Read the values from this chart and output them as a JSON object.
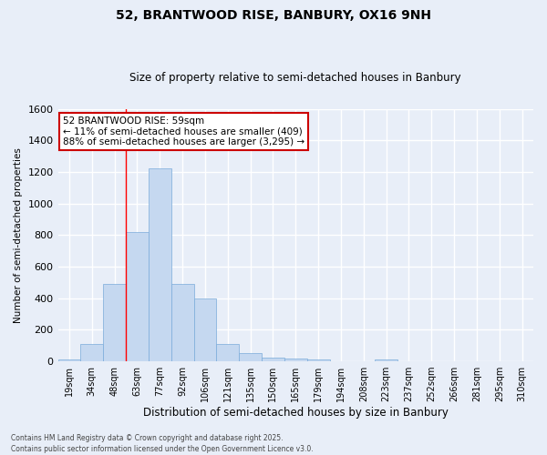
{
  "title1": "52, BRANTWOOD RISE, BANBURY, OX16 9NH",
  "title2": "Size of property relative to semi-detached houses in Banbury",
  "xlabel": "Distribution of semi-detached houses by size in Banbury",
  "ylabel": "Number of semi-detached properties",
  "bin_labels": [
    "19sqm",
    "34sqm",
    "48sqm",
    "63sqm",
    "77sqm",
    "92sqm",
    "106sqm",
    "121sqm",
    "135sqm",
    "150sqm",
    "165sqm",
    "179sqm",
    "194sqm",
    "208sqm",
    "223sqm",
    "237sqm",
    "252sqm",
    "266sqm",
    "281sqm",
    "295sqm",
    "310sqm"
  ],
  "bar_values": [
    10,
    110,
    490,
    820,
    1220,
    490,
    400,
    110,
    50,
    25,
    15,
    10,
    0,
    0,
    10,
    0,
    0,
    0,
    0,
    0,
    0
  ],
  "bar_color": "#c5d8f0",
  "bar_edge_color": "#7aabda",
  "annotation_text": "52 BRANTWOOD RISE: 59sqm\n← 11% of semi-detached houses are smaller (409)\n88% of semi-detached houses are larger (3,295) →",
  "annotation_box_color": "#ffffff",
  "annotation_box_edge": "#cc0000",
  "red_line_x": 3.0,
  "footnote1": "Contains HM Land Registry data © Crown copyright and database right 2025.",
  "footnote2": "Contains public sector information licensed under the Open Government Licence v3.0.",
  "bg_color": "#e8eef8",
  "grid_color": "#ffffff",
  "ylim": [
    0,
    1600
  ],
  "yticks": [
    0,
    200,
    400,
    600,
    800,
    1000,
    1200,
    1400,
    1600
  ]
}
